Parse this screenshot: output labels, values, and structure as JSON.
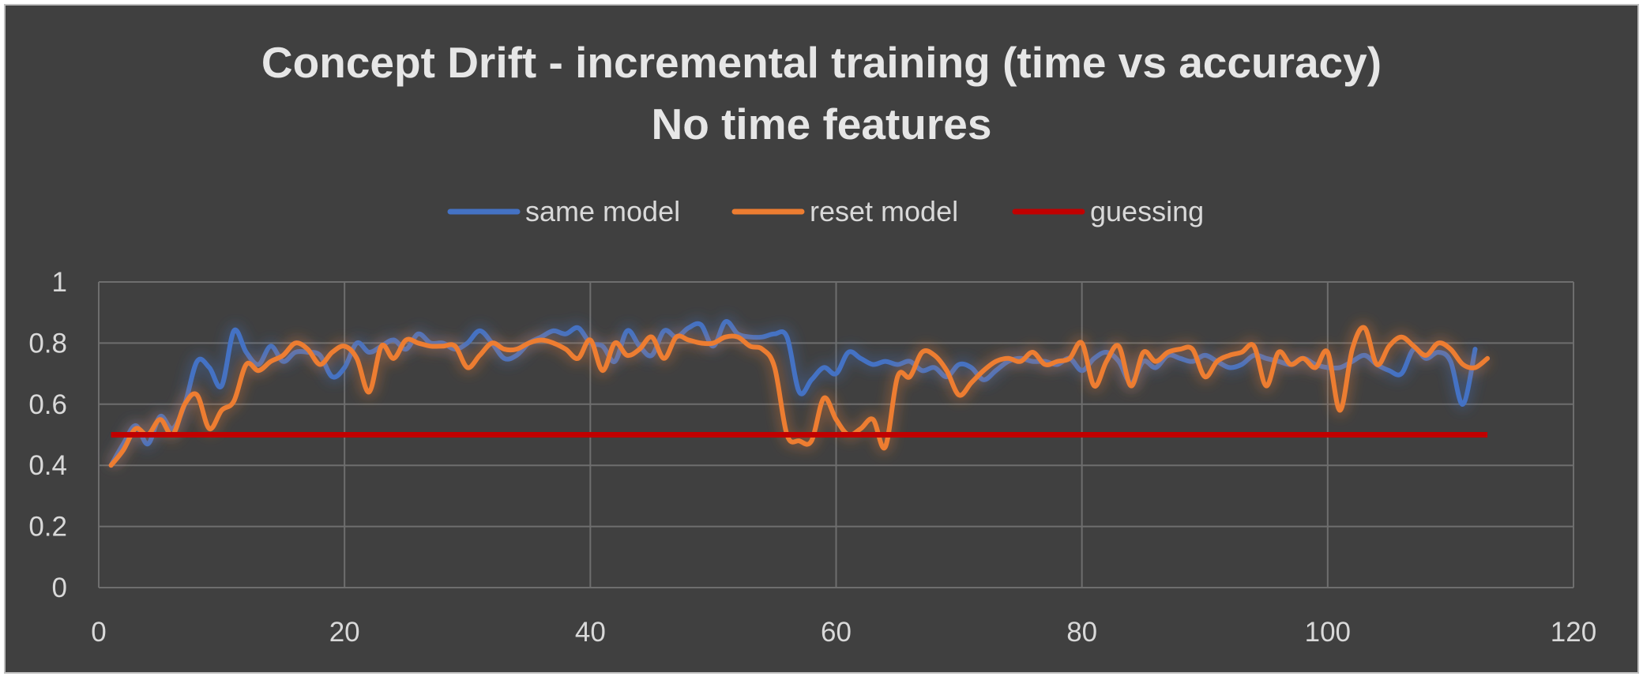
{
  "chart_data": {
    "type": "line",
    "title_lines": [
      "Concept Drift - incremental training (time vs accuracy)",
      "No time features"
    ],
    "xlabel": "",
    "ylabel": "",
    "xlim": [
      0,
      120
    ],
    "ylim": [
      0,
      1
    ],
    "x_ticks": [
      0,
      20,
      40,
      60,
      80,
      100,
      120
    ],
    "y_ticks": [
      0,
      0.2,
      0.4,
      0.6,
      0.8,
      1
    ],
    "y_tick_labels": [
      "0",
      "0.2",
      "0.4",
      "0.6",
      "0.8",
      "1"
    ],
    "grid": true,
    "legend_position": "top",
    "series": [
      {
        "name": "same model",
        "color": "#4472c4",
        "x": [
          1,
          2,
          3,
          4,
          5,
          6,
          7,
          8,
          9,
          10,
          11,
          12,
          13,
          14,
          15,
          16,
          17,
          18,
          19,
          20,
          21,
          22,
          23,
          24,
          25,
          26,
          27,
          28,
          29,
          30,
          31,
          32,
          33,
          34,
          35,
          36,
          37,
          38,
          39,
          40,
          41,
          42,
          43,
          44,
          45,
          46,
          47,
          48,
          49,
          50,
          51,
          52,
          53,
          54,
          55,
          56,
          57,
          58,
          59,
          60,
          61,
          62,
          63,
          64,
          65,
          66,
          67,
          68,
          69,
          70,
          71,
          72,
          73,
          74,
          75,
          76,
          77,
          78,
          79,
          80,
          81,
          82,
          83,
          84,
          85,
          86,
          87,
          88,
          89,
          90,
          91,
          92,
          93,
          94,
          95,
          96,
          97,
          98,
          99,
          100,
          101,
          102,
          103,
          104,
          105,
          106,
          107,
          108,
          109,
          110,
          111,
          112
        ],
        "values": [
          0.4,
          0.47,
          0.53,
          0.47,
          0.56,
          0.52,
          0.6,
          0.74,
          0.72,
          0.66,
          0.84,
          0.77,
          0.73,
          0.79,
          0.74,
          0.77,
          0.77,
          0.76,
          0.69,
          0.72,
          0.8,
          0.77,
          0.79,
          0.81,
          0.78,
          0.83,
          0.8,
          0.8,
          0.78,
          0.8,
          0.84,
          0.8,
          0.75,
          0.76,
          0.8,
          0.82,
          0.84,
          0.83,
          0.85,
          0.8,
          0.79,
          0.74,
          0.84,
          0.79,
          0.76,
          0.84,
          0.82,
          0.85,
          0.86,
          0.79,
          0.87,
          0.83,
          0.82,
          0.82,
          0.83,
          0.82,
          0.64,
          0.68,
          0.72,
          0.7,
          0.77,
          0.75,
          0.73,
          0.74,
          0.73,
          0.74,
          0.71,
          0.72,
          0.69,
          0.73,
          0.72,
          0.68,
          0.71,
          0.74,
          0.75,
          0.74,
          0.74,
          0.73,
          0.75,
          0.71,
          0.75,
          0.77,
          0.74,
          0.67,
          0.74,
          0.72,
          0.76,
          0.75,
          0.74,
          0.76,
          0.74,
          0.72,
          0.73,
          0.76,
          0.75,
          0.74,
          0.73,
          0.75,
          0.73,
          0.72,
          0.72,
          0.74,
          0.76,
          0.73,
          0.71,
          0.7,
          0.78,
          0.75,
          0.77,
          0.74,
          0.6,
          0.78
        ]
      },
      {
        "name": "reset model",
        "color": "#ed7d31",
        "x": [
          1,
          2,
          3,
          4,
          5,
          6,
          7,
          8,
          9,
          10,
          11,
          12,
          13,
          14,
          15,
          16,
          17,
          18,
          19,
          20,
          21,
          22,
          23,
          24,
          25,
          26,
          27,
          28,
          29,
          30,
          31,
          32,
          33,
          34,
          35,
          36,
          37,
          38,
          39,
          40,
          41,
          42,
          43,
          44,
          45,
          46,
          47,
          48,
          49,
          50,
          51,
          52,
          53,
          54,
          55,
          56,
          57,
          58,
          59,
          60,
          61,
          62,
          63,
          64,
          65,
          66,
          67,
          68,
          69,
          70,
          71,
          72,
          73,
          74,
          75,
          76,
          77,
          78,
          79,
          80,
          81,
          82,
          83,
          84,
          85,
          86,
          87,
          88,
          89,
          90,
          91,
          92,
          93,
          94,
          95,
          96,
          97,
          98,
          99,
          100,
          101,
          102,
          103,
          104,
          105,
          106,
          107,
          108,
          109,
          110,
          111,
          112,
          113
        ],
        "values": [
          0.4,
          0.45,
          0.52,
          0.5,
          0.55,
          0.5,
          0.6,
          0.63,
          0.52,
          0.58,
          0.61,
          0.73,
          0.71,
          0.74,
          0.76,
          0.8,
          0.78,
          0.73,
          0.77,
          0.79,
          0.75,
          0.64,
          0.79,
          0.75,
          0.81,
          0.8,
          0.79,
          0.79,
          0.79,
          0.72,
          0.76,
          0.8,
          0.78,
          0.78,
          0.8,
          0.81,
          0.8,
          0.78,
          0.75,
          0.81,
          0.71,
          0.8,
          0.76,
          0.78,
          0.82,
          0.75,
          0.82,
          0.81,
          0.8,
          0.8,
          0.82,
          0.82,
          0.79,
          0.78,
          0.72,
          0.5,
          0.48,
          0.48,
          0.62,
          0.55,
          0.5,
          0.52,
          0.55,
          0.46,
          0.69,
          0.69,
          0.77,
          0.76,
          0.71,
          0.63,
          0.67,
          0.71,
          0.74,
          0.75,
          0.74,
          0.77,
          0.73,
          0.74,
          0.75,
          0.8,
          0.66,
          0.74,
          0.79,
          0.66,
          0.77,
          0.74,
          0.77,
          0.78,
          0.78,
          0.69,
          0.74,
          0.76,
          0.77,
          0.79,
          0.66,
          0.77,
          0.73,
          0.75,
          0.72,
          0.77,
          0.58,
          0.78,
          0.85,
          0.73,
          0.79,
          0.82,
          0.79,
          0.76,
          0.8,
          0.78,
          0.73,
          0.72,
          0.75
        ]
      },
      {
        "name": "guessing",
        "color": "#c00000",
        "x": [
          1,
          113
        ],
        "values": [
          0.5,
          0.5
        ]
      }
    ]
  }
}
